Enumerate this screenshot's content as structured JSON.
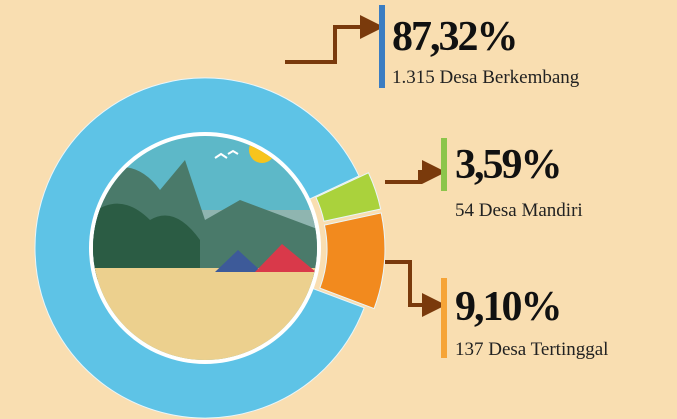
{
  "chart_data": {
    "type": "donut",
    "categories": [
      "1.315 Desa Berkembang",
      "54 Desa Mandiri",
      "137 Desa Tertinggal"
    ],
    "values": [
      87.32,
      3.59,
      9.1
    ],
    "value_labels": [
      "87,32%",
      "3,59%",
      "9,10%"
    ],
    "colors": [
      "#5ec3e6",
      "#aad23c",
      "#f28a1e"
    ],
    "bar_colors": [
      "#3b7dc2",
      "#8cc54b",
      "#f6a437"
    ]
  }
}
